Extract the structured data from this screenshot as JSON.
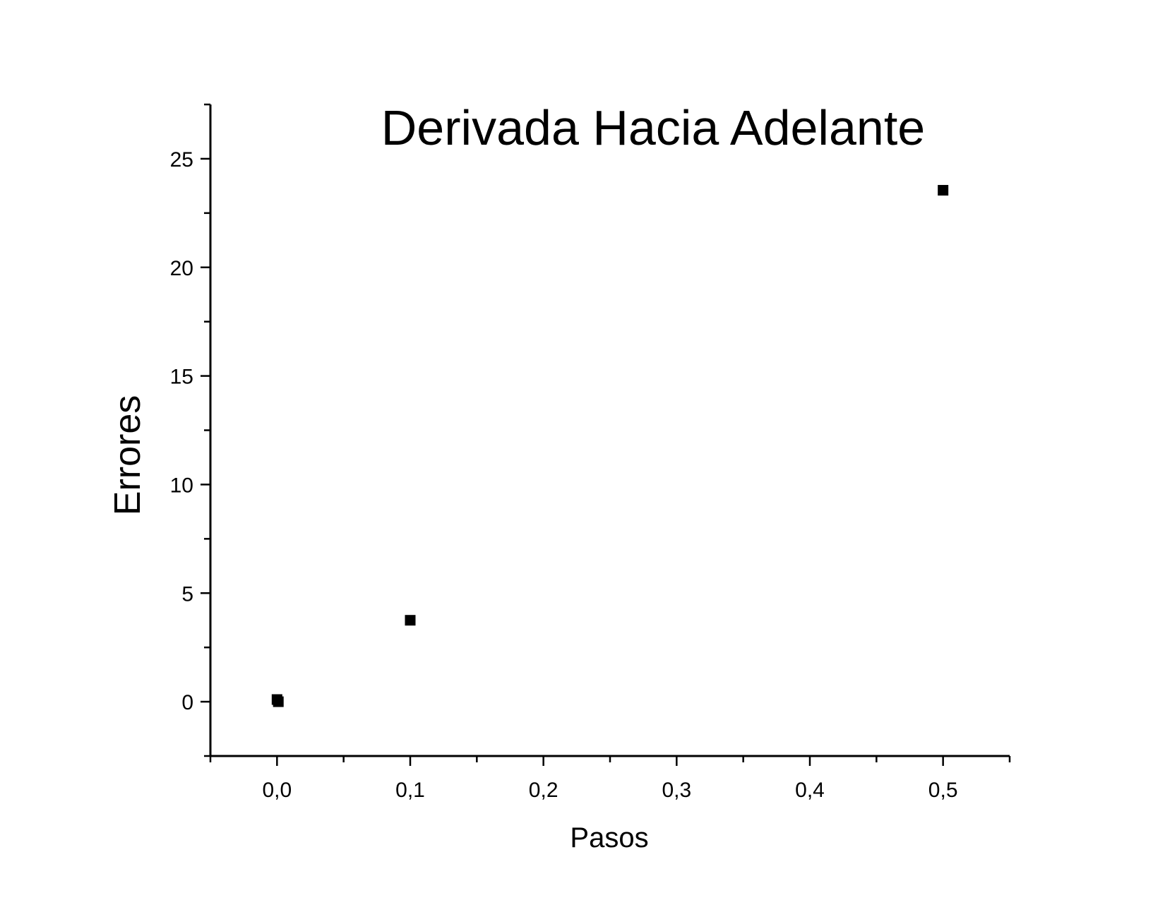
{
  "chart_data": {
    "type": "scatter",
    "title": "Derivada Hacia Adelante",
    "xlabel": "Pasos",
    "ylabel": "Errores",
    "xlim": [
      -0.05,
      0.55
    ],
    "ylim": [
      -2.5,
      27.5
    ],
    "x_ticks": [
      {
        "value": 0.0,
        "label": "0,0"
      },
      {
        "value": 0.1,
        "label": "0,1"
      },
      {
        "value": 0.2,
        "label": "0,2"
      },
      {
        "value": 0.3,
        "label": "0,3"
      },
      {
        "value": 0.4,
        "label": "0,4"
      },
      {
        "value": 0.5,
        "label": "0,5"
      }
    ],
    "x_minor_ticks": [
      -0.05,
      0.05,
      0.15,
      0.25,
      0.35,
      0.45,
      0.55
    ],
    "y_ticks": [
      {
        "value": 0,
        "label": "0"
      },
      {
        "value": 5,
        "label": "5"
      },
      {
        "value": 10,
        "label": "10"
      },
      {
        "value": 15,
        "label": "15"
      },
      {
        "value": 20,
        "label": "20"
      },
      {
        "value": 25,
        "label": "25"
      }
    ],
    "y_minor_ticks": [
      -2.5,
      2.5,
      7.5,
      12.5,
      17.5,
      22.5,
      27.5
    ],
    "grid": false,
    "legend": "none",
    "marker": "square",
    "marker_color": "#000000",
    "series": [
      {
        "points": [
          {
            "x": 0.0,
            "y": 0.1
          },
          {
            "x": 0.001,
            "y": 0.0
          },
          {
            "x": 0.1,
            "y": 3.75
          },
          {
            "x": 0.5,
            "y": 23.55
          }
        ]
      }
    ]
  }
}
